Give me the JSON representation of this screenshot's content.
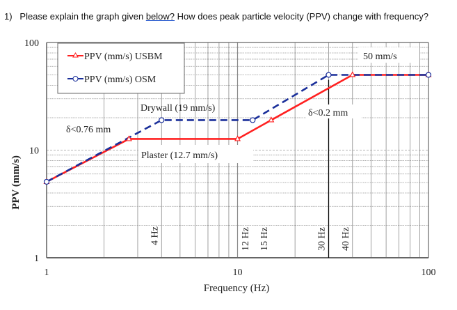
{
  "question": {
    "number": "1)",
    "text_before": "Please explain the graph given ",
    "underlined": "below?",
    "text_after": "  How does peak particle velocity (PPV) change with frequency?"
  },
  "chart_data": {
    "type": "line",
    "xlabel": "Frequency (Hz)",
    "ylabel": "PPV (mm/s)",
    "x_scale": "log",
    "y_scale": "log",
    "xlim": [
      1,
      100
    ],
    "ylim": [
      1,
      100
    ],
    "x_ticks": [
      "1",
      "10",
      "100"
    ],
    "y_ticks": [
      "1",
      "10",
      "100"
    ],
    "grid": true,
    "legend_placement": "top-left",
    "series": [
      {
        "name": "PPV (mm/s) USBM",
        "color": "#ff2020",
        "marker": "triangle",
        "style": "solid",
        "x": [
          1,
          2.7,
          10,
          15,
          40,
          100
        ],
        "y": [
          5.08,
          12.7,
          12.7,
          19,
          50,
          50
        ]
      },
      {
        "name": "PPV (mm/s) OSM",
        "color": "#1a2f9a",
        "marker": "circle",
        "style": "dashed",
        "x": [
          1,
          4,
          12,
          30,
          100
        ],
        "y": [
          5.08,
          19,
          19,
          50,
          50
        ]
      }
    ],
    "annotations": {
      "drywall": "Drywall (19 mm/s)",
      "plaster": "Plaster (12.7 mm/s)",
      "disp_low": "δ<0.76 mm",
      "disp_high": "δ<0.2 mm",
      "limit": "50 mm/s",
      "freq_marks": [
        "4 Hz",
        "12 Hz",
        "15 Hz",
        "30 Hz",
        "40 Hz"
      ]
    }
  }
}
